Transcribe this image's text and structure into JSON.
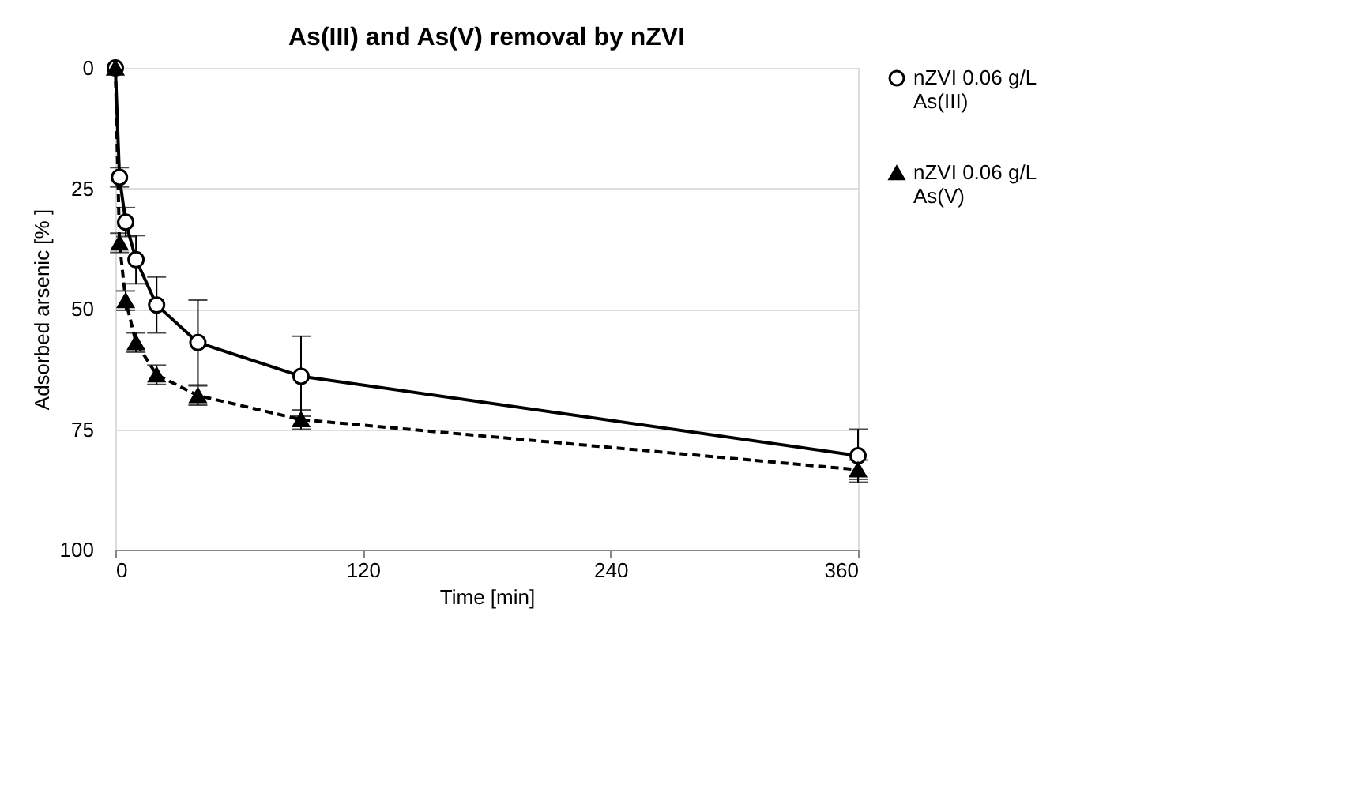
{
  "chart_data": {
    "type": "line",
    "title": "As(III) and As(V) removal by nZVI",
    "xlabel": "Time [min]",
    "ylabel": "Adsorbed arsenic [% ]",
    "xlim": [
      0,
      360
    ],
    "xticks": [
      0,
      120,
      240,
      360
    ],
    "ylim": [
      100,
      0
    ],
    "yticks": [
      0,
      25,
      50,
      75,
      100
    ],
    "grid": "y",
    "legend": "right",
    "series": [
      {
        "name": "nZVI 0.06 g/L As(III)",
        "color": "#000000",
        "marker": "circle",
        "line_style": "solid",
        "x": [
          0,
          2,
          5,
          10,
          20,
          40,
          90,
          360
        ],
        "values": [
          0,
          22.7,
          32,
          39.8,
          49.2,
          57,
          64,
          80.5
        ],
        "errors": [
          null,
          2,
          3,
          5,
          5.8,
          8.8,
          8.3,
          5.5
        ]
      },
      {
        "name": "nZVI 0.06 g/L As(V)",
        "color": "#000000",
        "marker": "triangle",
        "line_style": "dashed",
        "x": [
          0,
          2,
          5,
          10,
          20,
          40,
          90,
          360
        ],
        "values": [
          0,
          36.3,
          48.3,
          57,
          63.7,
          68,
          73,
          83.4
        ],
        "errors": [
          null,
          2,
          2,
          2,
          2,
          2,
          2,
          2
        ]
      }
    ]
  }
}
